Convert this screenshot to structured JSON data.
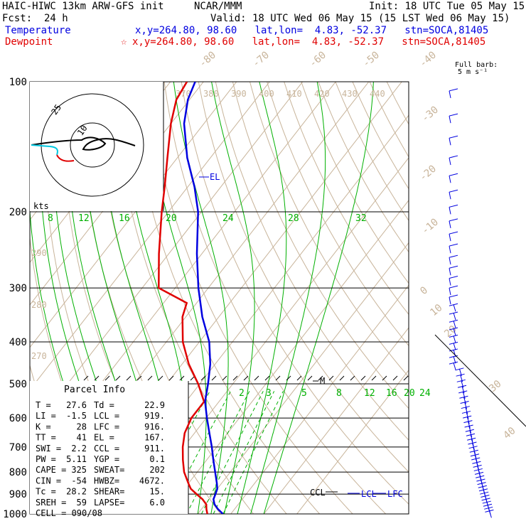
{
  "header": {
    "model": "HAIC-HIWC 13km ARW-GFS init",
    "agency": "NCAR/MMM",
    "init": "Init: 18 UTC Tue 05 May 15",
    "fcst_label": "Fcst:",
    "fcst_value": "24 h",
    "valid": "Valid: 18 UTC Wed 06 May 15 (15 LST Wed 06 May 15)",
    "temp_label": "Temperature",
    "temp_info": "x,y=264.80, 98.60   lat,lon=  4.83, -52.37   stn=SOCA,81405",
    "dew_label": "Dewpoint",
    "dew_star": "☆",
    "dew_info": "x,y=264.80, 98.60   lat,lon=  4.83, -52.37   stn=SOCA,81405"
  },
  "colors": {
    "temperature": "#0000e0",
    "dewpoint": "#e00000",
    "moist_adiabat": "#00b000",
    "dry_adiabat": "#c8b49a",
    "isotherm": "#c8b49a",
    "isobar": "#000000"
  },
  "barb_legend": {
    "line1": "Full barb:",
    "line2": "5 m s⁻¹"
  },
  "hodograph": {
    "units": "kts",
    "ring_labels": [
      "25",
      "10"
    ]
  },
  "parcel_info": {
    "title": "Parcel Info",
    "rows": [
      [
        "T   =",
        "27.6",
        "Td  =",
        "22.9"
      ],
      [
        "LI  =",
        "-1.5",
        "LCL =",
        "919."
      ],
      [
        "K   =",
        "28",
        "LFC =",
        "916."
      ],
      [
        "TT  =",
        "41",
        "EL  =",
        "167."
      ],
      [
        "SWI =",
        "2.2",
        "CCL =",
        "911."
      ],
      [
        "PW  =",
        "5.11",
        "YGP =",
        "0.1"
      ],
      [
        "CAPE =",
        "325",
        "SWEAT=",
        "202"
      ],
      [
        "CIN =",
        "-54",
        "HWBZ=",
        "4672."
      ],
      [
        "Tc  =",
        "28.2",
        "SHEAR=",
        "15."
      ],
      [
        "SREH =",
        "59",
        "LAPSE=",
        "6.0"
      ],
      [
        "CELL = 090/08",
        "",
        "",
        ""
      ]
    ]
  },
  "chart_data": {
    "type": "line",
    "title": "",
    "xlabel": "",
    "ylabel": "",
    "skew_t": true,
    "y_scale": "log-pressure",
    "ylim": [
      1000,
      100
    ],
    "pressure_labels": [
      "100",
      "200",
      "300",
      "400",
      "500",
      "600",
      "700",
      "800",
      "900",
      "1000"
    ],
    "isotherm_labels": [
      "-80",
      "-70",
      "-60",
      "-50",
      "-40",
      "-30",
      "-20",
      "-10",
      "0",
      "10",
      "20",
      "30",
      "40"
    ],
    "theta_labels": [
      "370",
      "380",
      "390",
      "400",
      "410",
      "420",
      "430",
      "440"
    ],
    "dry_adiabat_labels": [
      "290",
      "280",
      "270"
    ],
    "moist_adiabat_labels": [
      "8",
      "12",
      "16",
      "20",
      "24",
      "28",
      "32"
    ],
    "mixing_ratio_labels": [
      "2",
      "3",
      "5",
      "8",
      "12",
      "16",
      "20",
      "24"
    ],
    "annotations": [
      "EL",
      "M",
      "CCL",
      "LCL",
      "LFC"
    ],
    "series": [
      {
        "name": "Temperature",
        "pressure": [
          1000,
          975,
          950,
          925,
          900,
          875,
          850,
          800,
          750,
          700,
          650,
          600,
          550,
          500,
          450,
          400,
          350,
          300,
          250,
          200,
          175,
          150,
          125,
          110,
          100
        ],
        "temperature": [
          27.6,
          25.0,
          22.8,
          21.3,
          20.7,
          20.0,
          18.6,
          15.4,
          12.0,
          8.5,
          4.5,
          0.2,
          -4.2,
          -7.5,
          -11.5,
          -17.0,
          -25.0,
          -33.0,
          -41.5,
          -51.0,
          -58.0,
          -67.0,
          -76.0,
          -80.5,
          -82.5
        ]
      },
      {
        "name": "Dewpoint",
        "pressure": [
          1000,
          975,
          950,
          925,
          900,
          875,
          850,
          800,
          750,
          700,
          650,
          600,
          550,
          500,
          450,
          400,
          350,
          325,
          300,
          250,
          200,
          175,
          150,
          125,
          110,
          100
        ],
        "dewpoint": [
          22.9,
          21.5,
          20.3,
          18.0,
          15.0,
          12.0,
          10.0,
          6.0,
          2.8,
          -0.3,
          -3.0,
          -4.5,
          -4.5,
          -10.5,
          -18.0,
          -25.0,
          -31.0,
          -33.0,
          -45.0,
          -53.0,
          -62.0,
          -67.0,
          -73.0,
          -80.0,
          -84.0,
          -85.0
        ]
      }
    ]
  }
}
